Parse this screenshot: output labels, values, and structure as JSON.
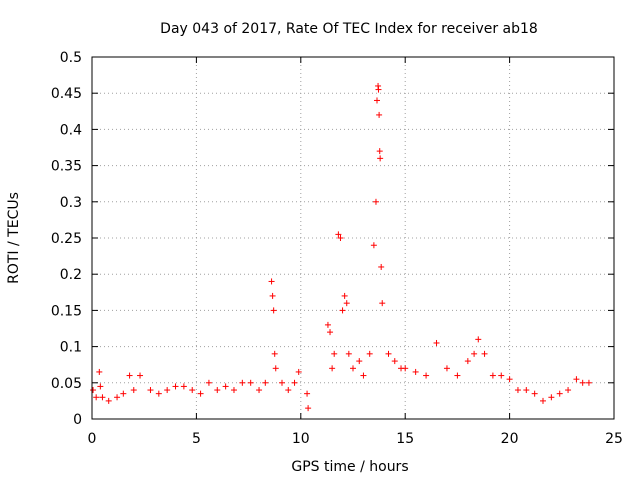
{
  "chart_data": {
    "type": "scatter",
    "title": "Day 043 of 2017, Rate Of TEC Index for receiver ab18",
    "xlabel": "GPS time / hours",
    "ylabel": "ROTI / TECUs",
    "xlim": [
      0,
      25
    ],
    "ylim": [
      0,
      0.5
    ],
    "xticks": [
      0,
      5,
      10,
      15,
      20,
      25
    ],
    "xtick_labels": [
      "0",
      "5",
      "10",
      "15",
      "20",
      "25"
    ],
    "yticks": [
      0,
      0.05,
      0.1,
      0.15,
      0.2,
      0.25,
      0.3,
      0.35,
      0.4,
      0.45,
      0.5
    ],
    "ytick_labels": [
      "0",
      "0.05",
      "0.1",
      "0.15",
      "0.2",
      "0.25",
      "0.3",
      "0.35",
      "0.4",
      "0.45",
      "0.5"
    ],
    "grid": true,
    "marker": "plus",
    "color": "#ff0000",
    "series": [
      {
        "name": "ROTI",
        "x": [
          0.05,
          0.2,
          0.35,
          0.4,
          0.5,
          0.8,
          1.2,
          1.5,
          1.8,
          2.0,
          2.3,
          2.8,
          3.2,
          3.6,
          4.0,
          4.4,
          4.8,
          5.2,
          5.6,
          6.0,
          6.4,
          6.8,
          7.2,
          7.6,
          8.0,
          8.3,
          8.6,
          8.65,
          8.7,
          8.75,
          8.8,
          9.1,
          9.4,
          9.7,
          9.9,
          10.3,
          10.35,
          11.3,
          11.4,
          11.5,
          11.6,
          11.8,
          11.9,
          12.0,
          12.1,
          12.2,
          12.3,
          12.5,
          12.8,
          13.0,
          13.3,
          13.5,
          13.6,
          13.65,
          13.7,
          13.72,
          13.75,
          13.78,
          13.8,
          13.85,
          13.9,
          14.2,
          14.5,
          14.8,
          15.0,
          15.5,
          16.0,
          16.5,
          17.0,
          17.5,
          18.0,
          18.3,
          18.5,
          18.8,
          19.2,
          19.6,
          20.0,
          20.4,
          20.8,
          21.2,
          21.6,
          22.0,
          22.4,
          22.8,
          23.2,
          23.5,
          23.8
        ],
        "y": [
          0.04,
          0.03,
          0.065,
          0.045,
          0.03,
          0.025,
          0.03,
          0.035,
          0.06,
          0.04,
          0.06,
          0.04,
          0.035,
          0.04,
          0.045,
          0.045,
          0.04,
          0.035,
          0.05,
          0.04,
          0.045,
          0.04,
          0.05,
          0.05,
          0.04,
          0.05,
          0.19,
          0.17,
          0.15,
          0.09,
          0.07,
          0.05,
          0.04,
          0.05,
          0.065,
          0.035,
          0.015,
          0.13,
          0.12,
          0.07,
          0.09,
          0.255,
          0.25,
          0.15,
          0.17,
          0.16,
          0.09,
          0.07,
          0.08,
          0.06,
          0.09,
          0.24,
          0.3,
          0.44,
          0.46,
          0.455,
          0.42,
          0.37,
          0.36,
          0.21,
          0.16,
          0.09,
          0.08,
          0.07,
          0.07,
          0.065,
          0.06,
          0.105,
          0.07,
          0.06,
          0.08,
          0.09,
          0.11,
          0.09,
          0.06,
          0.06,
          0.055,
          0.04,
          0.04,
          0.035,
          0.025,
          0.03,
          0.035,
          0.04,
          0.055,
          0.05,
          0.05
        ]
      }
    ]
  }
}
